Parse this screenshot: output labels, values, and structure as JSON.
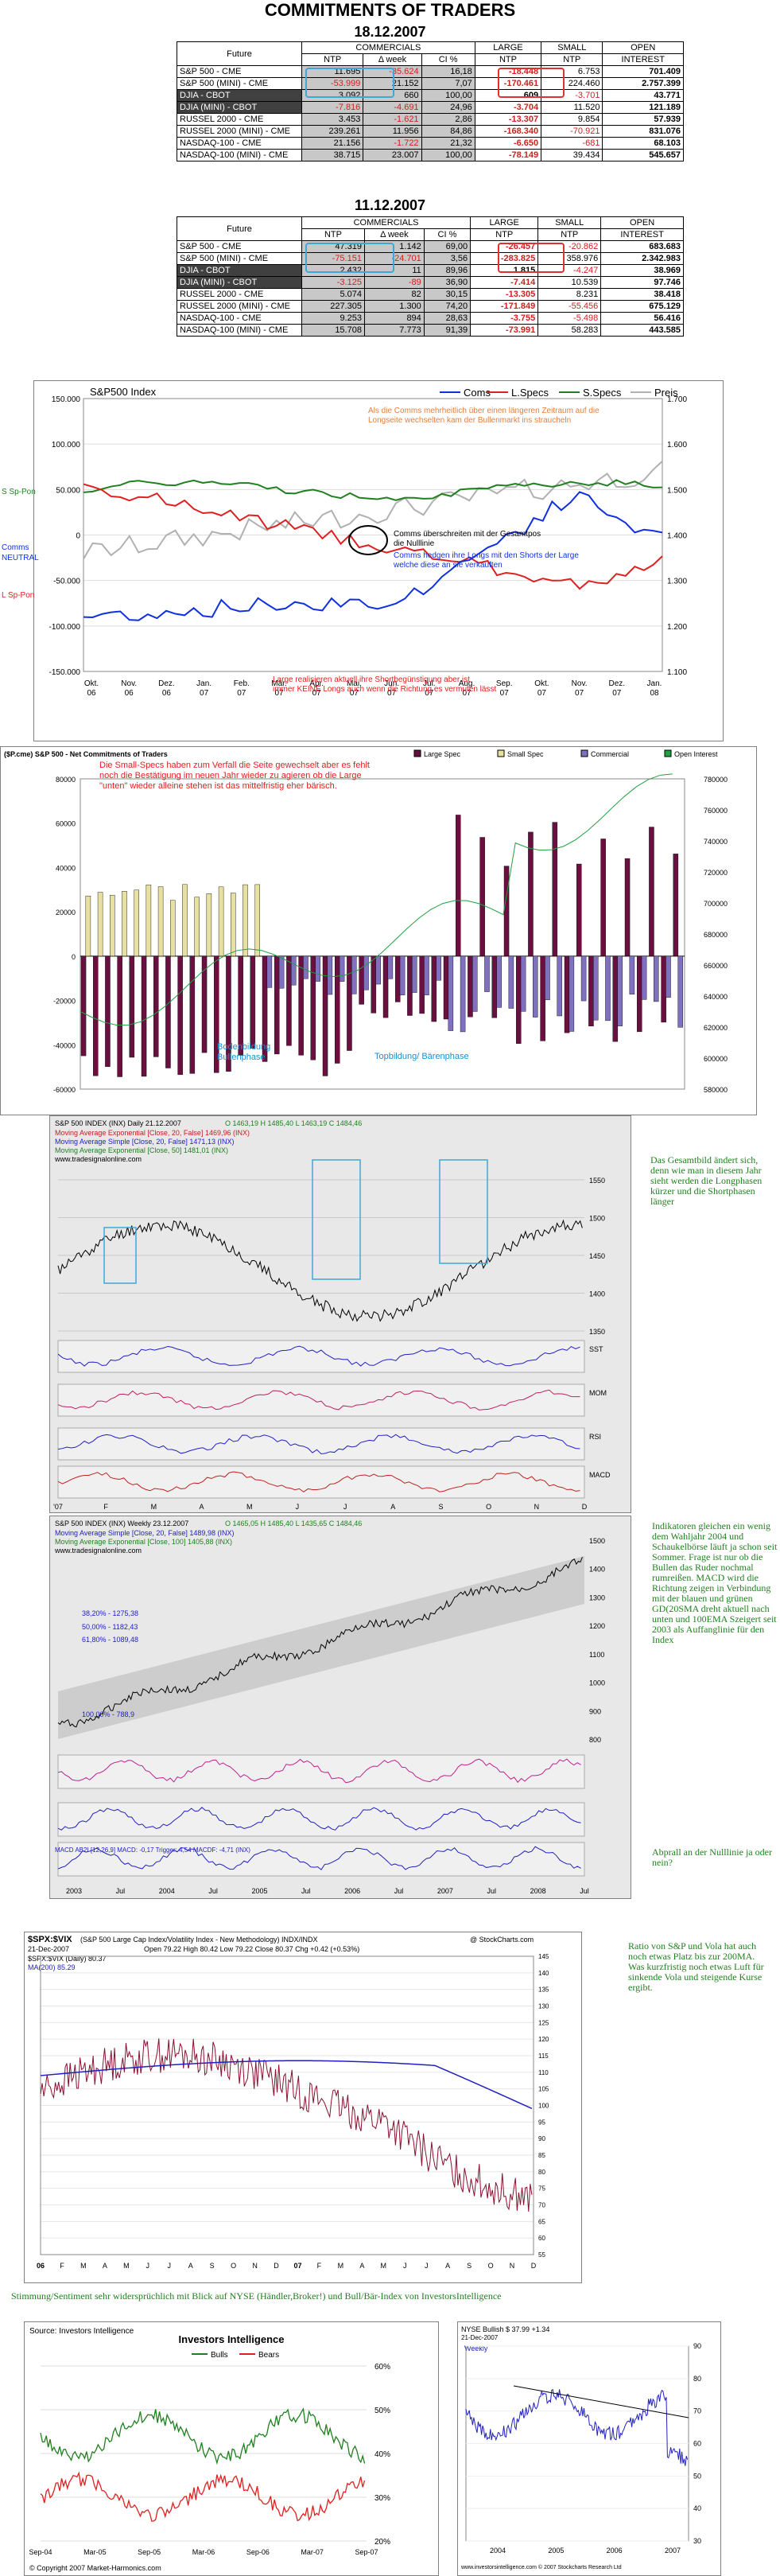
{
  "title": "COMMITMENTS OF TRADERS",
  "table1": {
    "date": "18.12.2007",
    "headers": {
      "future": "Future",
      "commercials": "COMMERCIALS",
      "ntp": "NTP",
      "week": "Δ week",
      "ci": "CI %",
      "large": "LARGE NTP",
      "small": "SMALL NTP",
      "open": "OPEN INTEREST"
    },
    "rows": [
      [
        "S&P 500 - CME",
        "11.695",
        "-35.624",
        "16,18",
        "-18.448",
        "6.753",
        "701.409"
      ],
      [
        "S&P 500 (MINI) - CME",
        "-53.999",
        "21.152",
        "7,07",
        "-170.461",
        "224.460",
        "2.757.399"
      ],
      [
        "DJIA - CBOT",
        "3.092",
        "660",
        "100,00",
        "609",
        "-3.701",
        "43.771"
      ],
      [
        "DJIA (MINI) - CBOT",
        "-7.816",
        "-4.691",
        "24,96",
        "-3.704",
        "11.520",
        "121.189"
      ],
      [
        "RUSSEL 2000 - CME",
        "3.453",
        "-1.621",
        "2,86",
        "-13.307",
        "9.854",
        "57.939"
      ],
      [
        "RUSSEL 2000 (MINI) - CME",
        "239.261",
        "11.956",
        "84,86",
        "-168.340",
        "-70.921",
        "831.076"
      ],
      [
        "NASDAQ-100 - CME",
        "21.156",
        "-1.722",
        "21,32",
        "-6.650",
        "-681",
        "68.103"
      ],
      [
        "NASDAQ-100 (MINI) - CME",
        "38.715",
        "23.007",
        "100,00",
        "-78.149",
        "39.434",
        "545.657"
      ]
    ]
  },
  "table2": {
    "date": "11.12.2007",
    "rows": [
      [
        "S&P 500 - CME",
        "47.319",
        "1.142",
        "69,00",
        "-26.457",
        "-20.862",
        "683.683"
      ],
      [
        "S&P 500 (MINI) - CME",
        "-75.151",
        "-24.701",
        "3,56",
        "-283.825",
        "358.976",
        "2.342.983"
      ],
      [
        "DJIA - CBOT",
        "2.432",
        "11",
        "89,96",
        "1.815",
        "-4.247",
        "38.969"
      ],
      [
        "DJIA (MINI) - CBOT",
        "-3.125",
        "-89",
        "36,90",
        "-7.414",
        "10.539",
        "97.746"
      ],
      [
        "RUSSEL 2000 - CME",
        "5.074",
        "82",
        "30,15",
        "-13.305",
        "8.231",
        "38.418"
      ],
      [
        "RUSSEL 2000 (MINI) - CME",
        "227.305",
        "1.300",
        "74,20",
        "-171.849",
        "-55.456",
        "675.129"
      ],
      [
        "NASDAQ-100 - CME",
        "9.253",
        "894",
        "28,63",
        "-3.755",
        "-5.498",
        "56.416"
      ],
      [
        "NASDAQ-100 (MINI) - CME",
        "15.708",
        "7.773",
        "91,39",
        "-73.991",
        "58.283",
        "443.585"
      ]
    ]
  },
  "chart1": {
    "title": "S&P500 Index",
    "legend": [
      "Coms",
      "L.Specs",
      "S.Specs",
      "Preis"
    ],
    "colors": {
      "coms": "#1030e0",
      "lspecs": "#e02020",
      "sspecs": "#208020",
      "preis": "#b0b0b0"
    },
    "left_ticks": [
      "150.000",
      "100.000",
      "50.000",
      "0",
      "-50.000",
      "-100.000",
      "-150.000"
    ],
    "right_ticks": [
      "1.700",
      "1.600",
      "1.500",
      "1.400",
      "1.300",
      "1.200",
      "1.100"
    ],
    "x_labels": [
      "Okt.\n06",
      "Nov.\n06",
      "Dez.\n06",
      "Jan.\n07",
      "Feb.\n07",
      "Mär.\n07",
      "Apr.\n07",
      "Mai.\n07",
      "Jun.\n07",
      "Jul.\n07",
      "Aug.\n07",
      "Sep.\n07",
      "Okt.\n07",
      "Nov.\n07",
      "Dez.\n07",
      "Jan.\n08"
    ],
    "side_labels": {
      "s": "S Sp-Pon",
      "comms": "Comms\nNEUTRAL",
      "l": "L Sp-Pon"
    },
    "ann1": "Als die Comms mehrheitlich über einen längeren Zeitraum auf die Longseite wechselten kam der Bullenmarkt ins straucheln",
    "ann2": "Comms überschreiten mit der Gesamtpos die Nulllinie",
    "ann3": "Comms hedgen ihre Longs mit den Shorts der Large welche diese an sie verkauften",
    "ann4": "Large realisieren aktuell ihre Shortbegünstigung aber ist immer KEINE Longs auch wenn die Richtung es vermuten lässt"
  },
  "chart2": {
    "header": "($P.cme) S&P 500 - Net Commitments of Traders",
    "legend": [
      "Large Spec",
      "Small Spec",
      "Commercial",
      "Open Interest"
    ],
    "left_ticks": [
      "80000",
      "60000",
      "40000",
      "20000",
      "0",
      "-20000",
      "-40000",
      "-60000"
    ],
    "right_ticks": [
      "780000",
      "760000",
      "740000",
      "720000",
      "700000",
      "680000",
      "660000",
      "640000",
      "620000",
      "600000",
      "580000"
    ],
    "ann1": "Die Small-Specs haben zum Verfall die Seite gewechselt aber es fehlt noch die Bestätigung im neuen Jahr wieder zu agieren ob die Large \"unten\" wieder alleine stehen ist das mittelfristig eher bärisch.",
    "ann2": "Bodenbildung Bullenphase",
    "ann3": "Topbildung/ Bärenphase"
  },
  "chart3": {
    "title": "S&P 500 INDEX (INX) Daily 21.12.2007",
    "quote": "O 1463,19 H 1485,40 L 1463,19 C 1484,46",
    "ma1": "Moving Average Exponential [Close, 20, False] 1469,96 (INX)",
    "ma2": "Moving Average Simple [Close, 20, False] 1471,13 (INX)",
    "ma3": "Moving Average Exponential [Close, 50] 1481,01 (INX)",
    "site": "www.tradesignalonline.com",
    "y_ticks": [
      "1550",
      "1500",
      "1450",
      "1400",
      "1350"
    ],
    "sub": [
      "SST",
      "MOM",
      "RSI",
      "MACD"
    ],
    "x_labels": [
      "'07",
      "F",
      "M",
      "A",
      "M",
      "J",
      "J",
      "A",
      "S",
      "O",
      "N",
      "D"
    ],
    "ann": "Das Gesamtbild ändert sich, denn wie man in diesem Jahr sieht werden die Longphasen kürzer und die Shortphasen länger"
  },
  "chart4": {
    "title": "S&P 500 INDEX (INX) Weekly 23.12.2007",
    "quote": "O 1465,05 H 1485,40 L 1435,65 C 1484,46",
    "ma1": "Moving Average Simple [Close, 20, False] 1489,98 (INX)",
    "ma2": "Moving Average Exponential [Close, 100] 1405,88 (INX)",
    "site": "www.tradesignalonline.com",
    "fibs": [
      "38,20% - 1275,38",
      "50,00% - 1182,43",
      "61,80% - 1089,48",
      "100,00% - 788,9"
    ],
    "y_ticks": [
      "1500",
      "1400",
      "1300",
      "1200",
      "1100",
      "1000",
      "900",
      "800"
    ],
    "x_labels": [
      "2003",
      "Jul",
      "2004",
      "Jul",
      "2005",
      "Jul",
      "2006",
      "Jul",
      "2007",
      "Jul",
      "2008",
      "Jul"
    ],
    "macd_line": "MACD AB2I [12,26,9] MACD: -0,17 Trigger: 4,54 MACDF: -4,71 (INX)",
    "ann1": "Indikatoren gleichen ein wenig dem Wahljahr 2004 und Schaukelbörse läuft ja schon seit Sommer. Frage ist nur ob die Bullen das Ruder nochmal rumreißen. MACD wird die Richtung zeigen in Verbindung mit der blauen und grünen GD(20SMA dreht aktuell nach unten und 100EMA Szeigert seit 2003 als Auffanglinie für den Index",
    "ann2": "Abprall an der Nulllinie ja oder nein?"
  },
  "chart5": {
    "symbol": "$SPX:$VIX",
    "desc": "(S&P 500 Large Cap Index/Volatility Index - New Methodology) INDX/INDX",
    "date": "21-Dec-2007",
    "quote": "Open 79.22  High 80.42  Low 79.22  Close 80.37  Chg +0.42 (+0.53%)",
    "legend1": "$SPX:$VIX (Daily) 80.37",
    "legend2": "MA(200) 85.29",
    "credit": "@ StockCharts.com",
    "y_ticks": [
      "145",
      "140",
      "135",
      "130",
      "125",
      "120",
      "115",
      "110",
      "105",
      "100",
      "95",
      "90",
      "85",
      "80",
      "75",
      "70",
      "65",
      "60",
      "55"
    ],
    "x_labels": [
      "06",
      "F",
      "M",
      "A",
      "M",
      "J",
      "J",
      "A",
      "S",
      "O",
      "N",
      "D",
      "07",
      "F",
      "M",
      "A",
      "M",
      "J",
      "J",
      "A",
      "S",
      "O",
      "N",
      "D"
    ],
    "ann": "Ratio von S&P und Vola hat auch noch etwas Platz bis zur 200MA. Was kurzfristig noch etwas Luft für sinkende Vola und steigende Kurse ergibt."
  },
  "summary": "Stimmung/Sentiment sehr widersprüchlich mit Blick auf NYSE (Händler,Broker!) und Bull/Bär-Index von InvestorsIntelligence",
  "chart6": {
    "source": "Source: Investors Intelligence",
    "title": "Investors Intelligence",
    "legend": [
      "Bulls",
      "Bears"
    ],
    "y_ticks": [
      "60%",
      "50%",
      "40%",
      "30%",
      "20%"
    ],
    "x_labels": [
      "Sep-04",
      "Mar-05",
      "Sep-05",
      "Mar-06",
      "Sep-06",
      "Mar-07",
      "Sep-07"
    ],
    "copyright": "© Copyright 2007 Market-Harmonics.com"
  },
  "chart7": {
    "title": "NYSE Bullish  $ 37.99  +1.34",
    "date": "21-Dec-2007",
    "label": "Weekly",
    "y_ticks": [
      "90",
      "80",
      "70",
      "60",
      "50",
      "40",
      "30"
    ],
    "x_labels": [
      "2004",
      "2005",
      "2006",
      "2007"
    ],
    "credit": "www.investorsintelligence.com   © 2007 Stockcharts Research Ltd"
  }
}
